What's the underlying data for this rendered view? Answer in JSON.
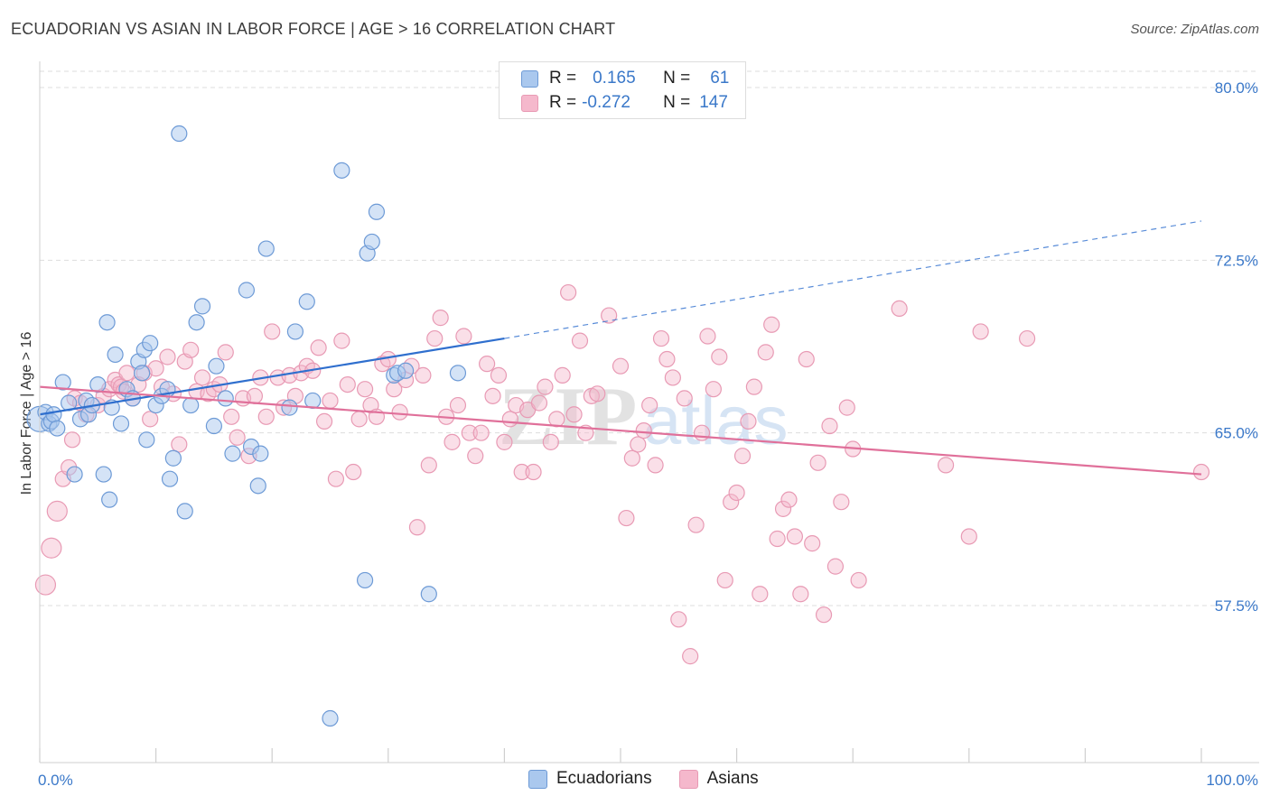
{
  "header": {
    "title": "ECUADORIAN VS ASIAN IN LABOR FORCE | AGE > 16 CORRELATION CHART",
    "source": "Source: ZipAtlas.com"
  },
  "watermark": {
    "zip": "ZIP",
    "atlas": "atlas"
  },
  "legend": {
    "rows": [
      {
        "r_label": "R =",
        "r_value": "0.165",
        "n_label": "N =",
        "n_value": "61"
      },
      {
        "r_label": "R =",
        "r_value": "-0.272",
        "n_label": "N =",
        "n_value": "147"
      }
    ]
  },
  "bottom_legend": {
    "items": [
      "Ecuadorians",
      "Asians"
    ]
  },
  "colors": {
    "blue_fill": "#aac8ee",
    "blue_stroke": "#6d9ad6",
    "blue_line": "#2f6fce",
    "pink_fill": "#f5b8cc",
    "pink_stroke": "#e89ab4",
    "pink_line": "#e0709a",
    "tick_text": "#3a78c9",
    "grid": "#dddddd"
  },
  "chart_data": {
    "type": "scatter",
    "title": "ECUADORIAN VS ASIAN IN LABOR FORCE | AGE > 16 CORRELATION CHART",
    "xlabel": "",
    "ylabel": "In Labor Force | Age > 16",
    "xlim": [
      0,
      100
    ],
    "ylim": [
      50.0,
      81.5
    ],
    "x_tick_labels": [
      "0.0%",
      "100.0%"
    ],
    "y_ticks": [
      57.5,
      65.0,
      72.5,
      80.0
    ],
    "y_tick_labels": [
      "57.5%",
      "65.0%",
      "72.5%",
      "80.0%"
    ],
    "grid": true,
    "legend_position": "top-center",
    "series": [
      {
        "name": "Ecuadorians",
        "r": 0.165,
        "n": 61,
        "trend": {
          "x_solid": [
            0,
            40
          ],
          "y_solid": [
            65.8,
            69.1
          ],
          "x_dashed": [
            40,
            100
          ],
          "y_dashed": [
            69.1,
            74.2
          ]
        },
        "points": [
          [
            0,
            65.6
          ],
          [
            0.5,
            65.9
          ],
          [
            0.8,
            65.4
          ],
          [
            1.0,
            65.5
          ],
          [
            1.2,
            65.8
          ],
          [
            1.5,
            65.2
          ],
          [
            2.0,
            67.2
          ],
          [
            2.5,
            66.3
          ],
          [
            3,
            63.2
          ],
          [
            3.5,
            65.6
          ],
          [
            4,
            66.4
          ],
          [
            4.2,
            65.8
          ],
          [
            4.5,
            66.2
          ],
          [
            5,
            67.1
          ],
          [
            5.5,
            63.2
          ],
          [
            5.8,
            69.8
          ],
          [
            6,
            62.1
          ],
          [
            6.2,
            66.1
          ],
          [
            6.5,
            68.4
          ],
          [
            7,
            65.4
          ],
          [
            7.5,
            66.9
          ],
          [
            8,
            66.5
          ],
          [
            8.5,
            68.1
          ],
          [
            8.8,
            67.6
          ],
          [
            9,
            68.6
          ],
          [
            9.2,
            64.7
          ],
          [
            9.5,
            68.9
          ],
          [
            10,
            66.2
          ],
          [
            10.5,
            66.6
          ],
          [
            11,
            66.9
          ],
          [
            11.2,
            63.0
          ],
          [
            11.5,
            63.9
          ],
          [
            12,
            78.0
          ],
          [
            12.5,
            61.6
          ],
          [
            13,
            66.2
          ],
          [
            13.5,
            69.8
          ],
          [
            14,
            70.5
          ],
          [
            15,
            65.3
          ],
          [
            15.2,
            67.9
          ],
          [
            16,
            66.5
          ],
          [
            16.6,
            64.1
          ],
          [
            17.8,
            71.2
          ],
          [
            18.2,
            64.4
          ],
          [
            18.8,
            62.7
          ],
          [
            19,
            64.1
          ],
          [
            19.5,
            73.0
          ],
          [
            21.5,
            66.1
          ],
          [
            22,
            69.4
          ],
          [
            23,
            70.7
          ],
          [
            23.5,
            66.4
          ],
          [
            25,
            52.6
          ],
          [
            26,
            76.4
          ],
          [
            28,
            58.6
          ],
          [
            28.2,
            72.8
          ],
          [
            28.6,
            73.3
          ],
          [
            29,
            74.6
          ],
          [
            30.5,
            67.5
          ],
          [
            30.8,
            67.6
          ],
          [
            31.5,
            67.7
          ],
          [
            33.5,
            58.0
          ],
          [
            36,
            67.6
          ]
        ]
      },
      {
        "name": "Asians",
        "r": -0.272,
        "n": 147,
        "trend": {
          "x": [
            0,
            100
          ],
          "y": [
            67.0,
            63.2
          ]
        },
        "points": [
          [
            0.5,
            58.4
          ],
          [
            1.0,
            60.0
          ],
          [
            1.5,
            61.6
          ],
          [
            2.0,
            63.0
          ],
          [
            2.5,
            63.5
          ],
          [
            2.8,
            64.7
          ],
          [
            3.0,
            66.5
          ],
          [
            3.5,
            66.3
          ],
          [
            4.0,
            65.8
          ],
          [
            5.0,
            66.2
          ],
          [
            5.5,
            66.6
          ],
          [
            6.0,
            66.9
          ],
          [
            6.5,
            67.3
          ],
          [
            6.8,
            67.1
          ],
          [
            7.0,
            67.0
          ],
          [
            7.2,
            66.8
          ],
          [
            7.5,
            67.6
          ],
          [
            8.0,
            66.5
          ],
          [
            8.5,
            67.1
          ],
          [
            9.0,
            67.6
          ],
          [
            9.5,
            65.6
          ],
          [
            10.0,
            67.8
          ],
          [
            10.5,
            67.0
          ],
          [
            11.0,
            68.3
          ],
          [
            11.5,
            66.7
          ],
          [
            12.0,
            64.5
          ],
          [
            12.5,
            68.1
          ],
          [
            13.0,
            68.6
          ],
          [
            13.5,
            66.8
          ],
          [
            14.0,
            67.4
          ],
          [
            14.5,
            66.7
          ],
          [
            15.0,
            66.9
          ],
          [
            15.5,
            67.1
          ],
          [
            16.0,
            68.5
          ],
          [
            16.5,
            65.7
          ],
          [
            17.0,
            64.8
          ],
          [
            17.5,
            66.5
          ],
          [
            18.0,
            64.0
          ],
          [
            18.5,
            66.6
          ],
          [
            19.0,
            67.4
          ],
          [
            19.5,
            65.7
          ],
          [
            20.0,
            69.4
          ],
          [
            20.5,
            67.4
          ],
          [
            21.0,
            66.1
          ],
          [
            21.5,
            67.5
          ],
          [
            22.0,
            66.6
          ],
          [
            22.5,
            67.6
          ],
          [
            23.0,
            67.9
          ],
          [
            23.5,
            67.7
          ],
          [
            24.0,
            68.7
          ],
          [
            24.5,
            65.5
          ],
          [
            25.0,
            66.4
          ],
          [
            25.5,
            63.0
          ],
          [
            26.0,
            69.0
          ],
          [
            26.5,
            67.1
          ],
          [
            27.0,
            63.3
          ],
          [
            27.5,
            65.6
          ],
          [
            28.0,
            66.9
          ],
          [
            28.5,
            66.2
          ],
          [
            29.0,
            65.7
          ],
          [
            29.5,
            68.0
          ],
          [
            30.0,
            68.2
          ],
          [
            30.5,
            66.9
          ],
          [
            31.0,
            65.9
          ],
          [
            31.5,
            67.3
          ],
          [
            32.0,
            67.9
          ],
          [
            32.5,
            60.9
          ],
          [
            33.0,
            67.5
          ],
          [
            33.5,
            63.6
          ],
          [
            34.0,
            69.1
          ],
          [
            34.5,
            70.0
          ],
          [
            35.0,
            65.7
          ],
          [
            35.5,
            64.6
          ],
          [
            36.0,
            66.2
          ],
          [
            36.5,
            69.2
          ],
          [
            37.0,
            65.0
          ],
          [
            37.5,
            64.0
          ],
          [
            38.0,
            65.0
          ],
          [
            38.5,
            68.0
          ],
          [
            39.0,
            66.6
          ],
          [
            39.5,
            67.5
          ],
          [
            40.0,
            64.6
          ],
          [
            40.5,
            65.6
          ],
          [
            41.0,
            66.2
          ],
          [
            41.5,
            63.3
          ],
          [
            42.0,
            66.0
          ],
          [
            42.5,
            63.3
          ],
          [
            43.0,
            66.3
          ],
          [
            43.5,
            67.0
          ],
          [
            44.0,
            64.6
          ],
          [
            44.5,
            65.6
          ],
          [
            45.0,
            67.5
          ],
          [
            45.5,
            71.1
          ],
          [
            46.0,
            65.8
          ],
          [
            46.5,
            69.0
          ],
          [
            47.0,
            65.0
          ],
          [
            47.5,
            66.6
          ],
          [
            48.0,
            66.7
          ],
          [
            49.0,
            70.1
          ],
          [
            50.0,
            67.9
          ],
          [
            50.5,
            61.3
          ],
          [
            51.0,
            63.9
          ],
          [
            51.5,
            64.5
          ],
          [
            52.0,
            65.1
          ],
          [
            52.5,
            66.2
          ],
          [
            53.0,
            63.6
          ],
          [
            53.5,
            69.1
          ],
          [
            54.0,
            68.2
          ],
          [
            54.5,
            67.4
          ],
          [
            55.0,
            56.9
          ],
          [
            55.5,
            66.5
          ],
          [
            56.0,
            55.3
          ],
          [
            56.5,
            61.0
          ],
          [
            57.0,
            65.0
          ],
          [
            57.5,
            69.2
          ],
          [
            58.0,
            66.9
          ],
          [
            58.5,
            68.3
          ],
          [
            59.0,
            58.6
          ],
          [
            59.5,
            62.0
          ],
          [
            60.0,
            62.4
          ],
          [
            60.5,
            64.0
          ],
          [
            61.0,
            65.5
          ],
          [
            61.5,
            67.0
          ],
          [
            62.0,
            58.0
          ],
          [
            62.5,
            68.5
          ],
          [
            63.0,
            69.7
          ],
          [
            63.5,
            60.4
          ],
          [
            64.0,
            61.7
          ],
          [
            64.5,
            62.1
          ],
          [
            65.0,
            60.5
          ],
          [
            65.5,
            58.0
          ],
          [
            66.0,
            68.2
          ],
          [
            66.5,
            60.2
          ],
          [
            67.0,
            63.7
          ],
          [
            67.5,
            57.1
          ],
          [
            68.0,
            65.3
          ],
          [
            68.5,
            59.2
          ],
          [
            69.0,
            62.0
          ],
          [
            69.5,
            66.1
          ],
          [
            70.0,
            64.3
          ],
          [
            70.5,
            58.6
          ],
          [
            74.0,
            70.4
          ],
          [
            78.0,
            63.6
          ],
          [
            80.0,
            60.5
          ],
          [
            81.0,
            69.4
          ],
          [
            85.0,
            69.1
          ],
          [
            100.0,
            63.3
          ]
        ]
      }
    ]
  }
}
